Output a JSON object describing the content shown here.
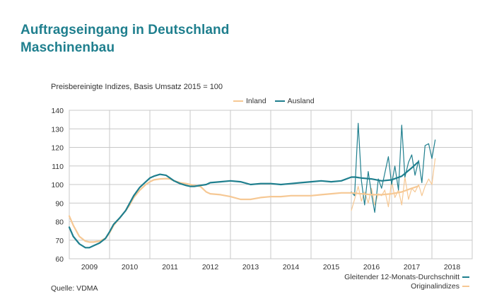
{
  "page": {
    "title_line1": "Auftragseingang in Deutschland",
    "title_line2": "Maschinenbau",
    "source": "Quelle: VDMA",
    "note1": "Gleitender 12-Monats-Durchschnitt",
    "note2": "Originalindizes"
  },
  "colors": {
    "title": "#1f7f8e",
    "inland": "#f6c894",
    "ausland": "#1f7f8e",
    "grid": "#c8c8c8"
  },
  "chart_data": {
    "type": "line",
    "subtitle": "Preisbereinigte Indizes, Basis Umsatz 2015 = 100",
    "ylim": [
      60,
      140
    ],
    "yticks": [
      60,
      70,
      80,
      90,
      100,
      110,
      120,
      130,
      140
    ],
    "xlim": [
      2008.5,
      2018.5
    ],
    "xticks": [
      "2009",
      "2010",
      "2011",
      "2012",
      "2013",
      "2014",
      "2015",
      "2016",
      "2017",
      "2018"
    ],
    "xtick_positions": [
      2009,
      2010,
      2011,
      2012,
      2013,
      2014,
      2015,
      2016,
      2017,
      2018
    ],
    "legend_position": "top",
    "series": [
      {
        "name": "Inland",
        "kind": "moving_average",
        "x": [
          2008.5,
          2008.6,
          2008.75,
          2008.9,
          2009.0,
          2009.1,
          2009.25,
          2009.4,
          2009.5,
          2009.6,
          2009.75,
          2009.9,
          2010.0,
          2010.1,
          2010.25,
          2010.4,
          2010.5,
          2010.6,
          2010.75,
          2010.9,
          2011.0,
          2011.1,
          2011.25,
          2011.4,
          2011.5,
          2011.6,
          2011.75,
          2011.9,
          2012.0,
          2012.25,
          2012.5,
          2012.75,
          2013.0,
          2013.25,
          2013.5,
          2013.75,
          2014.0,
          2014.25,
          2014.5,
          2014.75,
          2015.0,
          2015.25,
          2015.5,
          2015.6,
          2015.75,
          2016.0,
          2016.25,
          2016.5,
          2016.75,
          2017.0,
          2017.15
        ],
        "values": [
          83,
          78,
          72,
          69.5,
          69,
          69,
          69.5,
          71,
          74,
          78,
          82,
          86,
          89,
          93,
          97,
          100,
          101.5,
          102.5,
          103,
          103.2,
          103,
          102,
          101,
          100.5,
          100,
          99.5,
          99,
          96,
          95,
          94.5,
          93.5,
          92,
          92,
          93,
          93.5,
          93.5,
          94,
          94,
          94,
          94.5,
          95,
          95.5,
          95.5,
          95.3,
          95,
          94.5,
          94.5,
          95,
          96,
          98,
          99
        ]
      },
      {
        "name": "Ausland",
        "kind": "moving_average",
        "x": [
          2008.5,
          2008.6,
          2008.75,
          2008.9,
          2009.0,
          2009.1,
          2009.25,
          2009.4,
          2009.5,
          2009.6,
          2009.75,
          2009.9,
          2010.0,
          2010.1,
          2010.25,
          2010.4,
          2010.5,
          2010.6,
          2010.75,
          2010.9,
          2011.0,
          2011.1,
          2011.25,
          2011.4,
          2011.5,
          2011.6,
          2011.75,
          2011.9,
          2012.0,
          2012.25,
          2012.5,
          2012.75,
          2013.0,
          2013.25,
          2013.5,
          2013.75,
          2014.0,
          2014.25,
          2014.5,
          2014.75,
          2015.0,
          2015.25,
          2015.5,
          2015.6,
          2015.75,
          2016.0,
          2016.25,
          2016.5,
          2016.75,
          2017.0,
          2017.15
        ],
        "values": [
          77,
          72,
          68,
          66,
          66,
          67,
          68.5,
          71,
          74.5,
          78.5,
          82,
          86,
          90,
          94,
          98.5,
          101.5,
          103.5,
          104.5,
          105.5,
          105,
          103.5,
          102,
          100.5,
          99.5,
          99,
          99,
          99.5,
          100,
          101,
          101.5,
          102,
          101.5,
          100,
          100.5,
          100.5,
          100,
          100.5,
          101,
          101.5,
          102,
          101.5,
          102,
          104,
          104,
          103.5,
          103,
          102,
          102.5,
          104.5,
          109,
          112
        ]
      },
      {
        "name": "Inland original",
        "kind": "original",
        "x": [
          2015.5,
          2015.58,
          2015.67,
          2015.75,
          2015.83,
          2015.92,
          2016.0,
          2016.08,
          2016.17,
          2016.25,
          2016.33,
          2016.42,
          2016.5,
          2016.58,
          2016.67,
          2016.75,
          2016.83,
          2016.92,
          2017.0,
          2017.08,
          2017.17,
          2017.25,
          2017.33,
          2017.42,
          2017.5,
          2017.58
        ],
        "values": [
          86,
          92,
          99,
          91,
          96,
          90,
          98,
          89,
          95,
          94,
          97,
          88,
          102,
          93,
          97,
          89,
          104,
          92,
          98,
          96,
          100,
          94,
          99,
          103,
          100,
          114
        ]
      },
      {
        "name": "Ausland original",
        "kind": "original",
        "x": [
          2015.5,
          2015.58,
          2015.67,
          2015.75,
          2015.83,
          2015.92,
          2016.0,
          2016.08,
          2016.17,
          2016.25,
          2016.33,
          2016.42,
          2016.5,
          2016.58,
          2016.67,
          2016.75,
          2016.83,
          2016.92,
          2017.0,
          2017.08,
          2017.17,
          2017.25,
          2017.33,
          2017.42,
          2017.5,
          2017.58
        ],
        "values": [
          96,
          94,
          133,
          102,
          89,
          107,
          95,
          85,
          103,
          98,
          106,
          115,
          100,
          110,
          97,
          132,
          104,
          112,
          116,
          105,
          113,
          101,
          121,
          122,
          114,
          124
        ]
      }
    ]
  }
}
